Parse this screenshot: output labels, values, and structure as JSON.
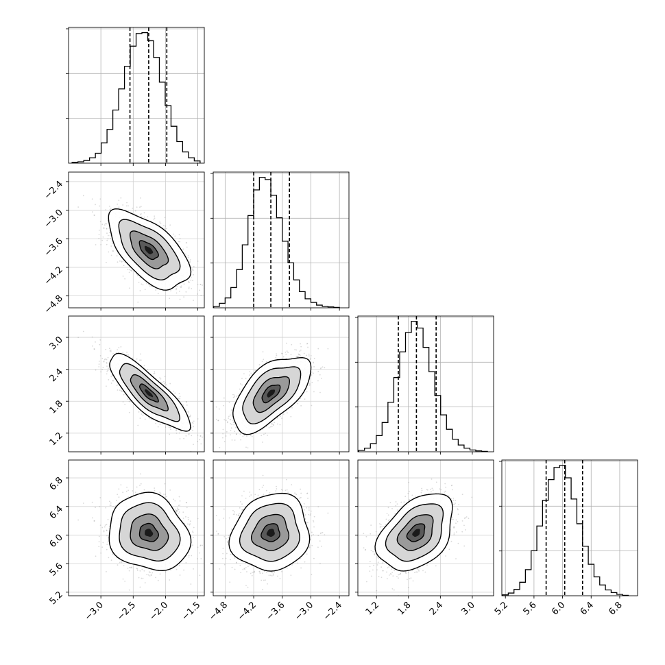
{
  "chart_data": {
    "type": "corner",
    "title": "",
    "parameters": [
      {
        "index": 0,
        "range": [
          -3.5,
          -1.4
        ],
        "ticks": [
          -3.0,
          -2.5,
          -2.0,
          -1.5
        ],
        "tick_labels": [
          "−3.0",
          "−2.5",
          "−2.0",
          "−1.5"
        ],
        "quantiles": [
          -2.55,
          -2.26,
          -1.98
        ],
        "mean": -2.26,
        "sd": 0.29
      },
      {
        "index": 1,
        "range": [
          -5.05,
          -2.2
        ],
        "ticks": [
          -4.8,
          -4.2,
          -3.6,
          -3.0,
          -2.4
        ],
        "tick_labels": [
          "−4.8",
          "−4.2",
          "−3.6",
          "−3.0",
          "−2.4"
        ],
        "quantiles": [
          -4.2,
          -3.84,
          -3.45
        ],
        "mean": -3.84,
        "sd": 0.38
      },
      {
        "index": 2,
        "range": [
          0.85,
          3.4
        ],
        "ticks": [
          1.2,
          1.8,
          2.4,
          3.0
        ],
        "tick_labels": [
          "1.2",
          "1.8",
          "2.4",
          "3.0"
        ],
        "quantiles": [
          1.61,
          1.95,
          2.32
        ],
        "mean": 1.95,
        "sd": 0.33
      },
      {
        "index": 3,
        "range": [
          5.15,
          7.05
        ],
        "ticks": [
          5.2,
          5.6,
          6.0,
          6.4,
          6.8
        ],
        "tick_labels": [
          "5.2",
          "5.6",
          "6.0",
          "6.4",
          "6.8"
        ],
        "quantiles": [
          5.77,
          6.03,
          6.28
        ],
        "mean": 6.03,
        "sd": 0.25
      }
    ],
    "correlations": [
      {
        "pair": [
          0,
          1
        ],
        "rho": -0.6
      },
      {
        "pair": [
          0,
          2
        ],
        "rho": -0.82
      },
      {
        "pair": [
          1,
          2
        ],
        "rho": 0.6
      },
      {
        "pair": [
          0,
          3
        ],
        "rho": -0.15
      },
      {
        "pair": [
          1,
          3
        ],
        "rho": 0.1
      },
      {
        "pair": [
          2,
          3
        ],
        "rho": 0.4
      }
    ],
    "histograms": [
      {
        "param": 0,
        "bin_centers": [
          -3.4,
          -3.31,
          -3.22,
          -3.13,
          -3.04,
          -2.95,
          -2.86,
          -2.77,
          -2.68,
          -2.59,
          -2.5,
          -2.41,
          -2.32,
          -2.23,
          -2.14,
          -2.05,
          -1.96,
          -1.87,
          -1.78,
          -1.69,
          -1.6,
          -1.51
        ],
        "counts": [
          2,
          3,
          6,
          12,
          22,
          45,
          75,
          118,
          165,
          215,
          260,
          288,
          290,
          272,
          235,
          180,
          128,
          82,
          48,
          25,
          12,
          5
        ]
      },
      {
        "param": 1,
        "bin_centers": [
          -4.98,
          -4.86,
          -4.74,
          -4.62,
          -4.5,
          -4.38,
          -4.26,
          -4.14,
          -4.02,
          -3.9,
          -3.78,
          -3.66,
          -3.54,
          -3.42,
          -3.3,
          -3.18,
          -3.06,
          -2.94,
          -2.82,
          -2.7,
          -2.58,
          -2.46
        ],
        "counts": [
          3,
          10,
          22,
          45,
          85,
          140,
          205,
          262,
          290,
          285,
          250,
          200,
          148,
          100,
          62,
          36,
          20,
          12,
          6,
          3,
          2,
          1
        ]
      },
      {
        "param": 2,
        "bin_centers": [
          0.92,
          1.03,
          1.14,
          1.25,
          1.36,
          1.47,
          1.58,
          1.69,
          1.8,
          1.91,
          2.02,
          2.13,
          2.24,
          2.35,
          2.46,
          2.57,
          2.68,
          2.79,
          2.9,
          3.01,
          3.12,
          3.23
        ],
        "counts": [
          3,
          8,
          18,
          36,
          65,
          110,
          165,
          222,
          265,
          290,
          275,
          232,
          178,
          125,
          82,
          50,
          28,
          15,
          8,
          4,
          2,
          1
        ]
      },
      {
        "param": 3,
        "bin_centers": [
          5.2,
          5.28,
          5.36,
          5.44,
          5.52,
          5.6,
          5.68,
          5.76,
          5.84,
          5.92,
          6.0,
          6.08,
          6.16,
          6.24,
          6.32,
          6.4,
          6.48,
          6.56,
          6.64,
          6.72,
          6.8,
          6.88
        ],
        "counts": [
          2,
          6,
          14,
          30,
          58,
          100,
          155,
          212,
          258,
          285,
          290,
          262,
          215,
          160,
          110,
          70,
          42,
          24,
          13,
          7,
          3,
          1
        ]
      }
    ],
    "grid": true,
    "contours": true
  }
}
